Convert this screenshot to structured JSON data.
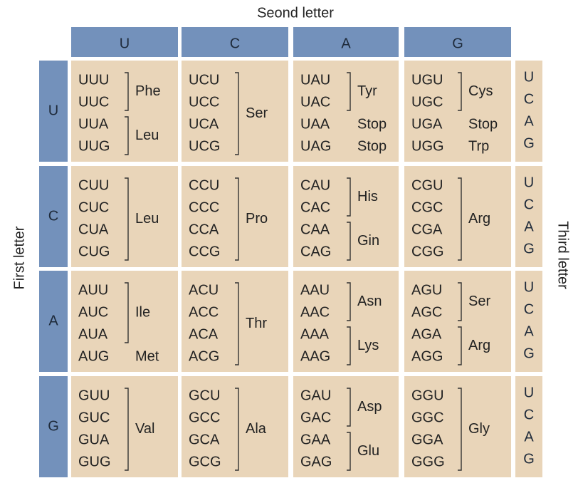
{
  "title": "Seond letter",
  "first_letter_label": "First letter",
  "third_letter_label": "Third letter",
  "column_headers": [
    "U",
    "C",
    "A",
    "G"
  ],
  "rows": [
    {
      "header": "U",
      "third_letters": [
        "U",
        "C",
        "A",
        "G"
      ],
      "cells": [
        {
          "groups": [
            {
              "codons": [
                "UUU",
                "UUC"
              ],
              "amino_acid": "Phe"
            },
            {
              "codons": [
                "UUA",
                "UUG"
              ],
              "amino_acid": "Leu"
            }
          ]
        },
        {
          "groups": [
            {
              "codons": [
                "UCU",
                "UCC",
                "UCA",
                "UCG"
              ],
              "amino_acid": "Ser"
            }
          ]
        },
        {
          "groups": [
            {
              "codons": [
                "UAU",
                "UAC"
              ],
              "amino_acid": "Tyr"
            },
            {
              "codons": [
                "UAA"
              ],
              "amino_acid": "Stop"
            },
            {
              "codons": [
                "UAG"
              ],
              "amino_acid": "Stop"
            }
          ]
        },
        {
          "groups": [
            {
              "codons": [
                "UGU",
                "UGC"
              ],
              "amino_acid": "Cys"
            },
            {
              "codons": [
                "UGA"
              ],
              "amino_acid": "Stop"
            },
            {
              "codons": [
                "UGG"
              ],
              "amino_acid": "Trp"
            }
          ]
        }
      ]
    },
    {
      "header": "C",
      "third_letters": [
        "U",
        "C",
        "A",
        "G"
      ],
      "cells": [
        {
          "groups": [
            {
              "codons": [
                "CUU",
                "CUC",
                "CUA",
                "CUG"
              ],
              "amino_acid": "Leu"
            }
          ]
        },
        {
          "groups": [
            {
              "codons": [
                "CCU",
                "CCC",
                "CCA",
                "CCG"
              ],
              "amino_acid": "Pro"
            }
          ]
        },
        {
          "groups": [
            {
              "codons": [
                "CAU",
                "CAC"
              ],
              "amino_acid": "His"
            },
            {
              "codons": [
                "CAA",
                "CAG"
              ],
              "amino_acid": "Gin"
            }
          ]
        },
        {
          "groups": [
            {
              "codons": [
                "CGU",
                "CGC",
                "CGA",
                "CGG"
              ],
              "amino_acid": "Arg"
            }
          ]
        }
      ]
    },
    {
      "header": "A",
      "third_letters": [
        "U",
        "C",
        "A",
        "G"
      ],
      "cells": [
        {
          "groups": [
            {
              "codons": [
                "AUU",
                "AUC",
                "AUA"
              ],
              "amino_acid": "Ile"
            },
            {
              "codons": [
                "AUG"
              ],
              "amino_acid": "Met"
            }
          ]
        },
        {
          "groups": [
            {
              "codons": [
                "ACU",
                "ACC",
                "ACA",
                "ACG"
              ],
              "amino_acid": "Thr"
            }
          ]
        },
        {
          "groups": [
            {
              "codons": [
                "AAU",
                "AAC"
              ],
              "amino_acid": "Asn"
            },
            {
              "codons": [
                "AAA",
                "AAG"
              ],
              "amino_acid": "Lys"
            }
          ]
        },
        {
          "groups": [
            {
              "codons": [
                "AGU",
                "AGC"
              ],
              "amino_acid": "Ser"
            },
            {
              "codons": [
                "AGA",
                "AGG"
              ],
              "amino_acid": "Arg"
            }
          ]
        }
      ]
    },
    {
      "header": "G",
      "third_letters": [
        "U",
        "C",
        "A",
        "G"
      ],
      "cells": [
        {
          "groups": [
            {
              "codons": [
                "GUU",
                "GUC",
                "GUA",
                "GUG"
              ],
              "amino_acid": "Val"
            }
          ]
        },
        {
          "groups": [
            {
              "codons": [
                "GCU",
                "GCC",
                "GCA",
                "GCG"
              ],
              "amino_acid": "Ala"
            }
          ]
        },
        {
          "groups": [
            {
              "codons": [
                "GAU",
                "GAC"
              ],
              "amino_acid": "Asp"
            },
            {
              "codons": [
                "GAA",
                "GAG"
              ],
              "amino_acid": "Glu"
            }
          ]
        },
        {
          "groups": [
            {
              "codons": [
                "GGU",
                "GGC",
                "GGA",
                "GGG"
              ],
              "amino_acid": "Gly"
            }
          ]
        }
      ]
    }
  ]
}
